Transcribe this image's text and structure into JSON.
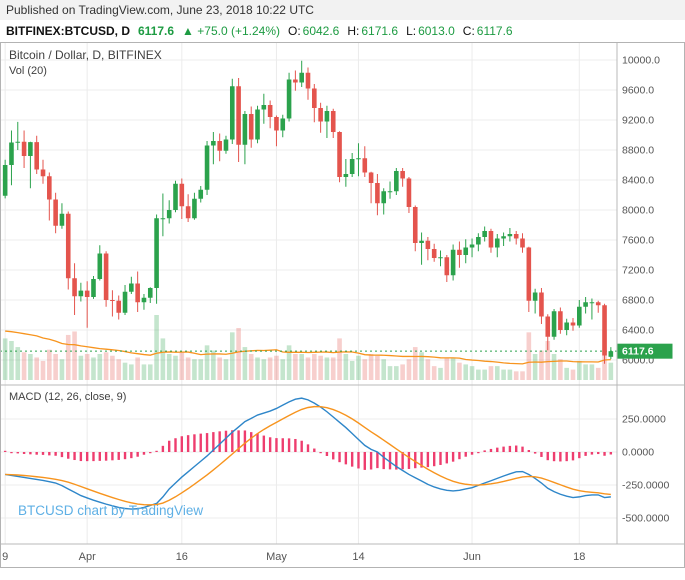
{
  "published_bar": {
    "text": "Published on TradingView.com, June 23, 2018 10:22 UTC"
  },
  "symbol_bar": {
    "symbol": "BITFINEX:BTCUSD, D",
    "last": "6117.6",
    "change": "▲ +75.0 (+1.24%)",
    "o_label": "O:",
    "o": "6042.6",
    "h_label": "H:",
    "h": "6171.6",
    "l_label": "L:",
    "l": "6013.0",
    "c_label": "C:",
    "c": "6117.6"
  },
  "legend": {
    "main": "Bitcoin / Dollar, D, BITFINEX",
    "volume": "Vol (20)",
    "macd": "MACD (12, 26, close, 9)"
  },
  "watermark": "BTCUSD chart by TradingView",
  "colors": {
    "up": "#2ba24c",
    "down": "#e4544d",
    "vol_up": "rgba(43,162,76,0.28)",
    "vol_down": "rgba(228,84,77,0.28)",
    "hist": "#ee3d6e",
    "macd_blue": "#2e86c9",
    "ma_orange": "#f7941e",
    "grid": "#ececec",
    "axis_text": "#555555",
    "separator": "#b9b9b9",
    "frame": "#b3b3b3",
    "badge_text": "#ffffff"
  },
  "chart_data": {
    "type": "candlestick",
    "symbol": "BITFINEX:BTCUSD",
    "interval": "D",
    "start_date": "2018-03-19",
    "end_date": "2018-06-23",
    "panes": [
      "price+volume",
      "macd"
    ],
    "price_axis_ticks": [
      "10000.0",
      "9600.0",
      "9200.0",
      "8800.0",
      "8400.0",
      "8000.0",
      "7600.0",
      "7200.0",
      "6800.0",
      "6400.0",
      "6000.0"
    ],
    "macd_axis_ticks": [
      "250.0000",
      "0.0000",
      "-250.0000",
      "-500.0000"
    ],
    "time_axis_labels": [
      {
        "i": 0,
        "label": "9"
      },
      {
        "i": 13,
        "label": "Apr"
      },
      {
        "i": 28,
        "label": "16"
      },
      {
        "i": 43,
        "label": "May"
      },
      {
        "i": 56,
        "label": "14"
      },
      {
        "i": 74,
        "label": "Jun"
      },
      {
        "i": 91,
        "label": "18"
      }
    ],
    "last_price": "6117.6",
    "macd_params": [
      12,
      26,
      9
    ],
    "volume_ma_length": 20,
    "warmup_volumes": [
      70,
      65,
      72,
      80,
      75,
      60,
      55,
      50,
      48,
      52,
      45,
      42,
      40,
      45
    ],
    "candles_ohlcv": [
      [
        8190,
        8670,
        8155,
        8600,
        48
      ],
      [
        8600,
        9060,
        8330,
        8900,
        45
      ],
      [
        8900,
        9175,
        8800,
        8910,
        38
      ],
      [
        8910,
        9060,
        8560,
        8720,
        32
      ],
      [
        8720,
        8910,
        8290,
        8905,
        30
      ],
      [
        8905,
        8990,
        8480,
        8540,
        26
      ],
      [
        8540,
        8670,
        8350,
        8450,
        22
      ],
      [
        8450,
        8500,
        7860,
        8140,
        35
      ],
      [
        8140,
        8230,
        7690,
        7790,
        30
      ],
      [
        7790,
        8090,
        7750,
        7950,
        24
      ],
      [
        7950,
        7980,
        6940,
        7090,
        52
      ],
      [
        7090,
        7290,
        6600,
        6850,
        56
      ],
      [
        6850,
        7030,
        6780,
        6925,
        28
      ],
      [
        6925,
        7050,
        6430,
        6840,
        30
      ],
      [
        6840,
        7120,
        6815,
        7080,
        26
      ],
      [
        7080,
        7530,
        7060,
        7420,
        30
      ],
      [
        7420,
        7450,
        6710,
        6800,
        32
      ],
      [
        6800,
        6930,
        6580,
        6790,
        28
      ],
      [
        6790,
        6860,
        6540,
        6630,
        24
      ],
      [
        6630,
        7000,
        6600,
        6910,
        20
      ],
      [
        6910,
        7110,
        6880,
        7020,
        18
      ],
      [
        7020,
        7180,
        6640,
        6770,
        26
      ],
      [
        6770,
        6880,
        6670,
        6830,
        18
      ],
      [
        6830,
        6970,
        6760,
        6960,
        18
      ],
      [
        6960,
        7940,
        6750,
        7890,
        75
      ],
      [
        7890,
        8220,
        7650,
        7890,
        48
      ],
      [
        7890,
        8130,
        7820,
        8000,
        30
      ],
      [
        8000,
        8390,
        7970,
        8350,
        28
      ],
      [
        8350,
        8420,
        7880,
        8050,
        32
      ],
      [
        8050,
        8210,
        7840,
        7890,
        26
      ],
      [
        7890,
        8230,
        7870,
        8150,
        24
      ],
      [
        8150,
        8320,
        8100,
        8270,
        24
      ],
      [
        8270,
        8920,
        8200,
        8860,
        40
      ],
      [
        8860,
        9040,
        8610,
        8920,
        34
      ],
      [
        8920,
        9020,
        8650,
        8790,
        26
      ],
      [
        8790,
        8990,
        8750,
        8940,
        24
      ],
      [
        8940,
        9750,
        8880,
        9650,
        55
      ],
      [
        9650,
        9760,
        8640,
        8870,
        60
      ],
      [
        8870,
        9320,
        8610,
        9280,
        38
      ],
      [
        9280,
        9380,
        8830,
        8940,
        30
      ],
      [
        8940,
        9390,
        8890,
        9340,
        26
      ],
      [
        9340,
        9550,
        9150,
        9400,
        24
      ],
      [
        9400,
        9460,
        9090,
        9240,
        26
      ],
      [
        9240,
        9260,
        8850,
        9060,
        28
      ],
      [
        9060,
        9270,
        8970,
        9220,
        24
      ],
      [
        9220,
        9830,
        9180,
        9740,
        40
      ],
      [
        9740,
        9860,
        9590,
        9700,
        30
      ],
      [
        9700,
        9990,
        9640,
        9830,
        30
      ],
      [
        9830,
        9900,
        9470,
        9620,
        26
      ],
      [
        9620,
        9680,
        9170,
        9360,
        30
      ],
      [
        9360,
        9430,
        9030,
        9180,
        28
      ],
      [
        9180,
        9390,
        8960,
        9320,
        26
      ],
      [
        9320,
        9350,
        8960,
        9040,
        26
      ],
      [
        9040,
        9050,
        8370,
        8440,
        48
      ],
      [
        8440,
        8680,
        8310,
        8480,
        30
      ],
      [
        8480,
        8760,
        8440,
        8680,
        22
      ],
      [
        8680,
        8890,
        8450,
        8690,
        28
      ],
      [
        8690,
        8850,
        8440,
        8500,
        24
      ],
      [
        8500,
        8510,
        8090,
        8360,
        30
      ],
      [
        8360,
        8480,
        7930,
        8090,
        28
      ],
      [
        8090,
        8290,
        7940,
        8250,
        24
      ],
      [
        8250,
        8380,
        8150,
        8250,
        16
      ],
      [
        8250,
        8560,
        8200,
        8520,
        16
      ],
      [
        8520,
        8560,
        8310,
        8420,
        18
      ],
      [
        8420,
        8440,
        7960,
        8040,
        24
      ],
      [
        8040,
        8060,
        7450,
        7560,
        38
      ],
      [
        7560,
        7700,
        7270,
        7590,
        32
      ],
      [
        7590,
        7640,
        7330,
        7480,
        24
      ],
      [
        7480,
        7550,
        7310,
        7360,
        16
      ],
      [
        7360,
        7460,
        7250,
        7370,
        14
      ],
      [
        7370,
        7400,
        7040,
        7130,
        26
      ],
      [
        7130,
        7540,
        7060,
        7470,
        26
      ],
      [
        7470,
        7580,
        7230,
        7400,
        20
      ],
      [
        7400,
        7610,
        7290,
        7500,
        18
      ],
      [
        7500,
        7620,
        7370,
        7540,
        16
      ],
      [
        7540,
        7690,
        7450,
        7640,
        12
      ],
      [
        7640,
        7780,
        7580,
        7720,
        12
      ],
      [
        7720,
        7750,
        7430,
        7500,
        16
      ],
      [
        7500,
        7680,
        7370,
        7620,
        16
      ],
      [
        7620,
        7700,
        7520,
        7650,
        12
      ],
      [
        7650,
        7760,
        7580,
        7680,
        12
      ],
      [
        7680,
        7720,
        7540,
        7620,
        10
      ],
      [
        7620,
        7690,
        7430,
        7500,
        10
      ],
      [
        7500,
        7510,
        6640,
        6790,
        55
      ],
      [
        6790,
        6950,
        6620,
        6900,
        30
      ],
      [
        6900,
        6960,
        6480,
        6580,
        34
      ],
      [
        6580,
        6610,
        6130,
        6310,
        45
      ],
      [
        6310,
        6680,
        6270,
        6650,
        30
      ],
      [
        6650,
        6700,
        6350,
        6400,
        24
      ],
      [
        6400,
        6550,
        6330,
        6500,
        14
      ],
      [
        6500,
        6560,
        6390,
        6460,
        12
      ],
      [
        6460,
        6800,
        6430,
        6710,
        22
      ],
      [
        6710,
        6840,
        6620,
        6770,
        18
      ],
      [
        6770,
        6820,
        6540,
        6770,
        18
      ],
      [
        6770,
        6790,
        6630,
        6730,
        14
      ],
      [
        6730,
        6750,
        5950,
        6060,
        58
      ],
      [
        6042.6,
        6171.6,
        6013.0,
        6117.6,
        20
      ]
    ],
    "macd_series": [
      -170,
      -178,
      -185,
      -193,
      -200,
      -208,
      -215,
      -225,
      -235,
      -255,
      -280,
      -305,
      -330,
      -348,
      -365,
      -380,
      -395,
      -408,
      -420,
      -428,
      -432,
      -430,
      -420,
      -405,
      -390,
      -340,
      -280,
      -235,
      -190,
      -150,
      -110,
      -70,
      -30,
      15,
      60,
      105,
      150,
      190,
      230,
      255,
      280,
      295,
      310,
      330,
      355,
      380,
      400,
      408,
      395,
      370,
      340,
      305,
      265,
      225,
      185,
      140,
      95,
      50,
      20,
      0,
      -40,
      -75,
      -110,
      -140,
      -170,
      -195,
      -220,
      -245,
      -265,
      -280,
      -290,
      -295,
      -290,
      -280,
      -270,
      -253,
      -235,
      -218,
      -200,
      -182,
      -165,
      -150,
      -148,
      -170,
      -200,
      -235,
      -275,
      -300,
      -320,
      -335,
      -345,
      -340,
      -330,
      -325,
      -325,
      -345,
      -340
    ]
  }
}
